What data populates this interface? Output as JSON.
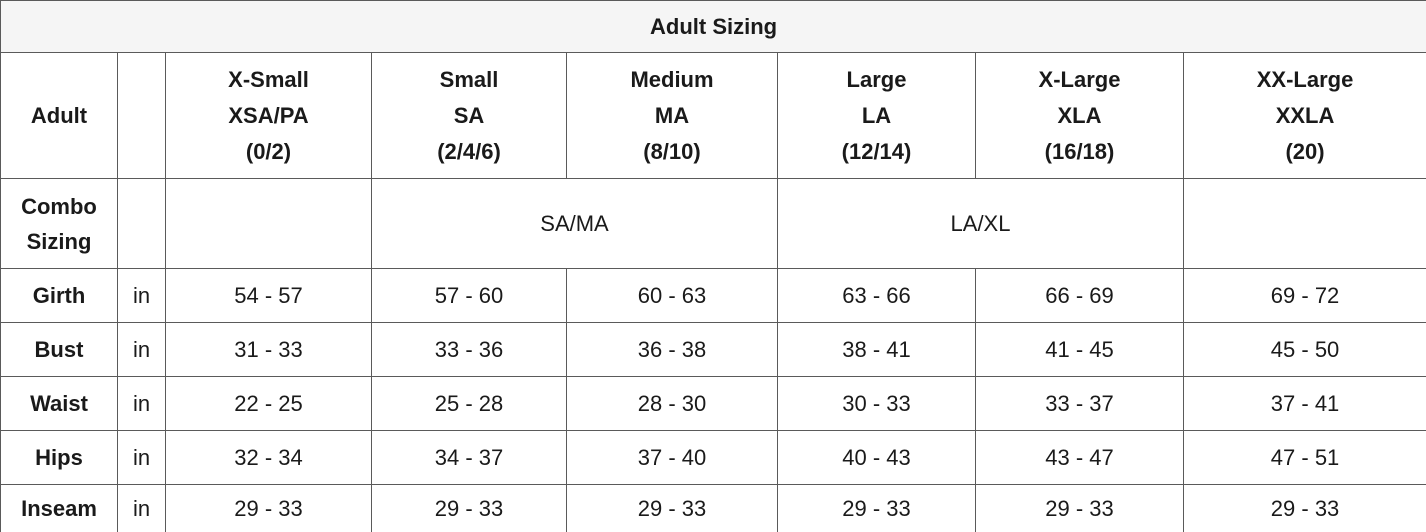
{
  "title": "Adult Sizing",
  "header": {
    "label": "Adult",
    "columns": [
      {
        "lines": [
          "X-Small",
          "XSA/PA",
          "(0/2)"
        ]
      },
      {
        "lines": [
          "Small",
          "SA",
          "(2/4/6)"
        ]
      },
      {
        "lines": [
          "Medium",
          "MA",
          "(8/10)"
        ]
      },
      {
        "lines": [
          "Large",
          "LA",
          "(12/14)"
        ]
      },
      {
        "lines": [
          "X-Large",
          "XLA",
          "(16/18)"
        ]
      },
      {
        "lines": [
          "XX-Large",
          "XXLA",
          "(20)"
        ]
      }
    ]
  },
  "combo": {
    "label": "Combo Sizing",
    "groups": [
      "SA/MA",
      "LA/XL"
    ]
  },
  "rows": [
    {
      "label": "Girth",
      "unit": "in",
      "values": [
        "54 - 57",
        "57 - 60",
        "60 - 63",
        "63 - 66",
        "66 - 69",
        "69 - 72"
      ]
    },
    {
      "label": "Bust",
      "unit": "in",
      "values": [
        "31 - 33",
        "33 - 36",
        "36 - 38",
        "38 - 41",
        "41 - 45",
        "45 - 50"
      ]
    },
    {
      "label": "Waist",
      "unit": "in",
      "values": [
        "22 - 25",
        "25 - 28",
        "28 - 30",
        "30 - 33",
        "33 - 37",
        "37 - 41"
      ]
    },
    {
      "label": "Hips",
      "unit": "in",
      "values": [
        "32 - 34",
        "34 - 37",
        "37 - 40",
        "40 - 43",
        "43 - 47",
        "47 - 51"
      ]
    },
    {
      "label": "Inseam",
      "unit": "in",
      "values": [
        "29 - 33",
        "29 - 33",
        "29 - 33",
        "29 - 33",
        "29 - 33",
        "29 - 33"
      ]
    }
  ]
}
